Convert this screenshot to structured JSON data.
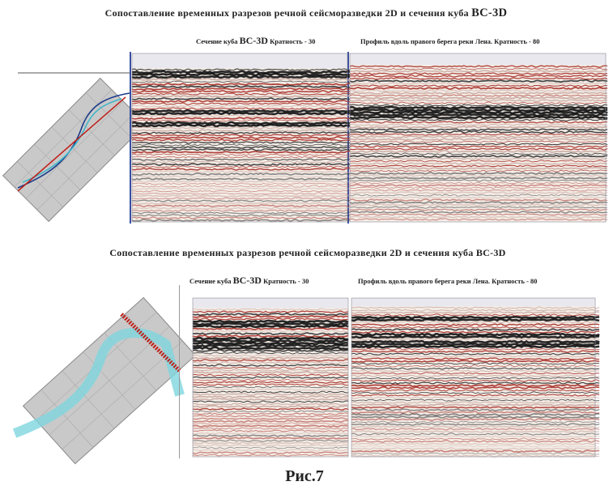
{
  "figures": [
    {
      "title": "Сопоставление  временных  разрезов речной сейсморазведки 2D и сечения куба",
      "title_cube": "BC-3D",
      "cube_label": "Сечение куба",
      "cube_name": "BC-3D",
      "cube_fold": "Кратность - 30",
      "profile_label": "Профиль вдоль правого берега реки Лена. Кратность - 80"
    },
    {
      "title": "Сопоставление  временных  разрезов речной сейсморазведки 2D и сечения куба",
      "title_cube": "BC-3D",
      "cube_label": "Сечение куба",
      "cube_name": "BC-3D",
      "cube_fold": "Кратность - 30",
      "profile_label": "Профиль вдоль правого берега реки Лена. Кратность - 80"
    }
  ],
  "caption": "Рис.7"
}
